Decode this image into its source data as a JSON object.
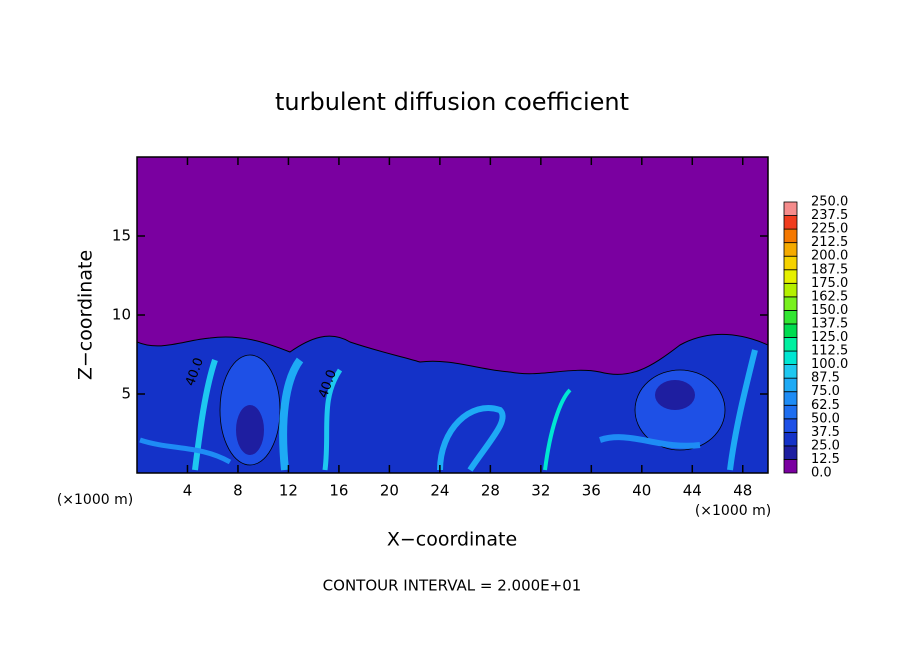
{
  "chart_data": {
    "type": "contour",
    "title": "turbulent diffusion coefficient",
    "x_label": "X−coordinate",
    "y_label": "Z−coordinate",
    "x_unit_labels": [
      "(×1000 m)",
      "(×1000 m)"
    ],
    "footer": "CONTOUR INTERVAL = 2.000E+01",
    "annotations": [
      "40.0",
      "40.0"
    ],
    "xlim": [
      0,
      50
    ],
    "ylim": [
      0,
      20
    ],
    "xticks": [
      4,
      8,
      12,
      16,
      20,
      24,
      28,
      32,
      36,
      40,
      44,
      48
    ],
    "yticks": [
      5,
      10,
      15
    ],
    "colorbar": {
      "levels": [
        {
          "value": 0,
          "label": "0.0"
        },
        {
          "value": 12.5,
          "label": "12.5"
        },
        {
          "value": 25,
          "label": "25.0"
        },
        {
          "value": 37.5,
          "label": "37.5"
        },
        {
          "value": 50,
          "label": "50.0"
        },
        {
          "value": 62.5,
          "label": "62.5"
        },
        {
          "value": 75,
          "label": "75.0"
        },
        {
          "value": 87.5,
          "label": "87.5"
        },
        {
          "value": 100,
          "label": "100.0"
        },
        {
          "value": 112.5,
          "label": "112.5"
        },
        {
          "value": 125,
          "label": "125.0"
        },
        {
          "value": 137.5,
          "label": "137.5"
        },
        {
          "value": 150,
          "label": "150.0"
        },
        {
          "value": 162.5,
          "label": "162.5"
        },
        {
          "value": 175,
          "label": "175.0"
        },
        {
          "value": 187.5,
          "label": "187.5"
        },
        {
          "value": 200,
          "label": "200.0"
        },
        {
          "value": 212.5,
          "label": "212.5"
        },
        {
          "value": 225,
          "label": "225.0"
        },
        {
          "value": 237.5,
          "label": "237.5"
        },
        {
          "value": 250,
          "label": "250.0"
        }
      ],
      "colors": [
        "#7a00a0",
        "#1e1ea0",
        "#1432c8",
        "#1e50e6",
        "#1e6ef0",
        "#1e8cf5",
        "#1eaaf5",
        "#1ec8f0",
        "#00e6d2",
        "#00f0a0",
        "#00dc50",
        "#32e632",
        "#78f01e",
        "#b4f000",
        "#e6f000",
        "#f5d200",
        "#f5aa00",
        "#f57800",
        "#f03c1e",
        "#f58c8c"
      ]
    }
  }
}
